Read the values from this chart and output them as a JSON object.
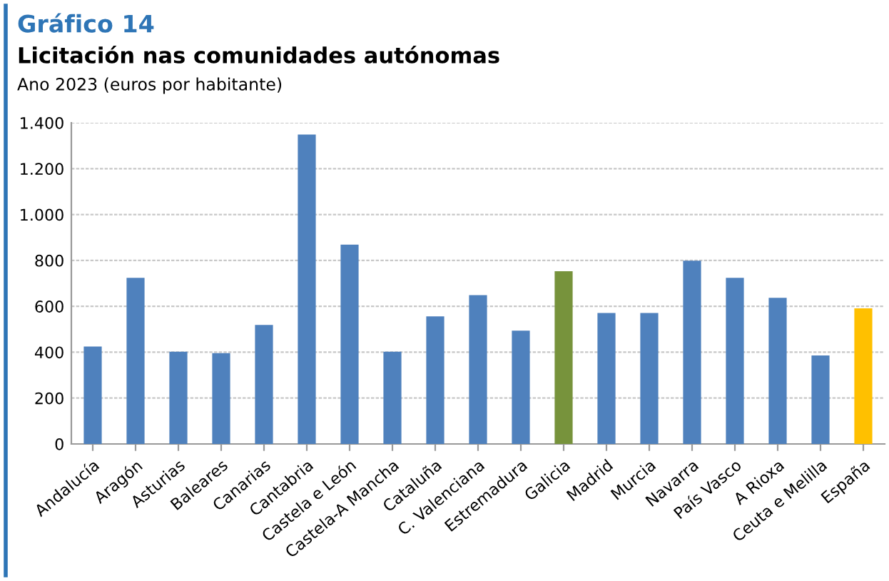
{
  "chart_data": {
    "type": "bar",
    "title": "Gráfico 14",
    "subtitle": "Licitación nas comunidades autónomas",
    "annotations": [
      "Ano 2023 (euros por habitante)"
    ],
    "categories": [
      "Andalucía",
      "Aragón",
      "Asturias",
      "Baleares",
      "Canarias",
      "Cantabria",
      "Castela e León",
      "Castela-A Mancha",
      "Cataluña",
      "C. Valenciana",
      "Estremadura",
      "Galicia",
      "Madrid",
      "Murcia",
      "Navarra",
      "País Vasco",
      "A Rioxa",
      "Ceuta e Melilla",
      "España"
    ],
    "values": [
      425,
      724,
      402,
      396,
      519,
      1349,
      869,
      402,
      556,
      649,
      494,
      753,
      571,
      571,
      799,
      724,
      637,
      386,
      591
    ],
    "colors": [
      "#4f81bd",
      "#4f81bd",
      "#4f81bd",
      "#4f81bd",
      "#4f81bd",
      "#4f81bd",
      "#4f81bd",
      "#4f81bd",
      "#4f81bd",
      "#4f81bd",
      "#4f81bd",
      "#77933c",
      "#4f81bd",
      "#4f81bd",
      "#4f81bd",
      "#4f81bd",
      "#4f81bd",
      "#4f81bd",
      "#ffc000"
    ],
    "ylim": [
      0,
      1400
    ],
    "yticks": [
      {
        "value": 0,
        "label": "0"
      },
      {
        "value": 200,
        "label": "200"
      },
      {
        "value": 400,
        "label": "400"
      },
      {
        "value": 600,
        "label": "600"
      },
      {
        "value": 800,
        "label": "800"
      },
      {
        "value": 1000,
        "label": "1.000"
      },
      {
        "value": 1200,
        "label": "1.200"
      },
      {
        "value": 1400,
        "label": "1.400"
      }
    ],
    "grid": "y"
  }
}
